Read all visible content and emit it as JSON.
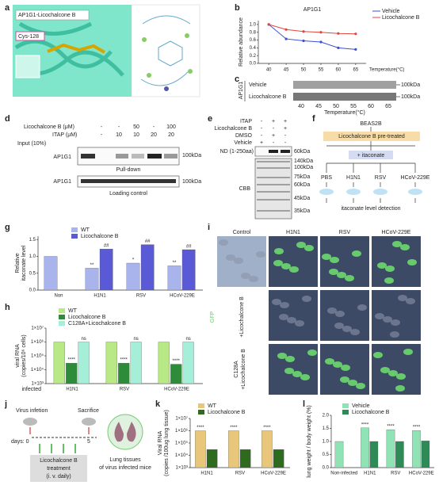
{
  "panel_labels": [
    "a",
    "b",
    "c",
    "d",
    "e",
    "f",
    "g",
    "h",
    "i",
    "j",
    "k",
    "l"
  ],
  "a": {
    "title": "AP1G1-Licochalcone B",
    "residue": "Cys-128"
  },
  "c": {
    "protein": "AP1G1",
    "rows": [
      "Vehicle",
      "Licochalcone B"
    ],
    "marker": "100kDa",
    "temperatures": [
      40,
      45,
      50,
      55,
      60,
      65
    ],
    "xlabel": "Temperature(°C)"
  },
  "d": {
    "rows": [
      {
        "label": "Licochalcone B (μM)",
        "cells": [
          "-",
          "-",
          "50",
          "-",
          "100"
        ]
      },
      {
        "label": "ITAP (μM)",
        "cells": [
          "-",
          "10",
          "10",
          "20",
          "20"
        ]
      }
    ],
    "input": "Input (10%)",
    "protein": "AP1G1",
    "marker": "100kDa",
    "captions": [
      "Pull-down",
      "Loading control"
    ]
  },
  "e": {
    "rows": [
      {
        "label": "ITAP",
        "cells": [
          "-",
          "+",
          "+"
        ]
      },
      {
        "label": "Licochalcone B",
        "cells": [
          "-",
          "-",
          "+"
        ]
      },
      {
        "label": "DMSO",
        "cells": [
          "-",
          "+",
          "-"
        ]
      },
      {
        "label": "Vehicle",
        "cells": [
          "+",
          "-",
          "-"
        ]
      }
    ],
    "probe": "ND (1-250aa)",
    "probe_marker": "60kDa",
    "stain": "CBB",
    "ladder": [
      "140kDa",
      "100kDa",
      "75kDa",
      "60kDa",
      "45kDa",
      "35kDa"
    ]
  },
  "f": {
    "cell": "BEAS2B",
    "pretreat": "Licochalcone B pre-treated",
    "add": "+ itaconate",
    "groups": [
      "PBS",
      "H1N1",
      "RSV",
      "HCoV-229E"
    ],
    "readout": "itaconate level detection"
  },
  "i": {
    "columns": [
      "Control",
      "H1N1",
      "RSV",
      "HCoV-229E"
    ],
    "rows": [
      "GFP",
      "+Licochalcone B",
      "C128A",
      "+Licochalcone B"
    ]
  },
  "j": {
    "infection": "Virus infetion",
    "sacrifice": "Sacrifice",
    "day_start": "days: 0",
    "day_end": "5",
    "treatment": [
      "Licochalcone B",
      "treatment",
      "(i. v. daily)"
    ],
    "tissue": [
      "Lung tissues",
      "of virus infected mice"
    ]
  },
  "chart_data": [
    {
      "type": "line",
      "title": "AP1G1",
      "ylabel": [
        "Relative abundance"
      ],
      "xlabel": "Temperature(°C)",
      "x": [
        40,
        45,
        50,
        55,
        60,
        65
      ],
      "xlim": [
        37,
        68
      ],
      "ylim": [
        0,
        1.1
      ],
      "xticks": [
        40,
        45,
        50,
        55,
        60,
        65
      ],
      "yticks": [
        {
          "value": 0,
          "label": "0.0"
        },
        0.2,
        0.4,
        0.6,
        0.8,
        {
          "value": 1,
          "label": "1.0"
        }
      ],
      "legend": "upper right",
      "series": [
        {
          "name": "Vehicle",
          "color": "#3b4fd8",
          "values": [
            1.0,
            0.63,
            0.58,
            0.55,
            0.4,
            0.36
          ]
        },
        {
          "name": "Licochalcone B",
          "color": "#e0463a",
          "values": [
            1.0,
            0.87,
            0.82,
            0.8,
            0.77,
            0.76
          ]
        }
      ]
    },
    {
      "type": "bar",
      "ylabel": [
        "Relative",
        "itaconate level"
      ],
      "categories": [
        "Non",
        "H1N1",
        "RSV",
        "HCoV-229E"
      ],
      "ylim": [
        0,
        1.6
      ],
      "yticks": [
        {
          "value": 0,
          "label": "0.0"
        },
        0.5,
        {
          "value": 1,
          "label": "1.0"
        },
        1.5
      ],
      "legend": "upper left",
      "series": [
        {
          "name": "WT",
          "color": "#a9b3ec",
          "values": [
            1.0,
            0.65,
            0.8,
            0.72
          ],
          "annotations": [
            null,
            "**",
            "*",
            "**"
          ]
        },
        {
          "name": "Licochalcone B",
          "color": "#5a5ad6",
          "values": [
            null,
            1.22,
            1.35,
            1.2
          ],
          "annotations": [
            null,
            "##",
            "##",
            "##"
          ]
        }
      ]
    },
    {
      "type": "bar",
      "log": true,
      "ylabel": [
        "viral RNA",
        "(copies/10⁶ cells)"
      ],
      "xlabel": "infected",
      "categories": [
        "H1N1",
        "RSV",
        "HCoV-229E"
      ],
      "ylim": [
        1000,
        10000000
      ],
      "yticks": [
        {
          "value": 1000,
          "label": "1×10³"
        },
        {
          "value": 10000,
          "label": "1×10⁴"
        },
        {
          "value": 100000,
          "label": "1×10⁵"
        },
        {
          "value": 1000000,
          "label": "1×10⁶"
        },
        {
          "value": 10000000,
          "label": "1×10⁷"
        }
      ],
      "legend": "upper left",
      "series": [
        {
          "name": "WT",
          "color": "#b8e986",
          "values": [
            1000000,
            1000000,
            1000000
          ],
          "annotations": [
            null,
            null,
            null
          ]
        },
        {
          "name": "Licochalcone B",
          "color": "#2e8b3a",
          "values": [
            30000,
            30000,
            25000
          ],
          "annotations": [
            "****",
            "****",
            "****"
          ]
        },
        {
          "name": "C128A+Licochalcone B",
          "color": "#a5efd9",
          "values": [
            1000000,
            1000000,
            1000000
          ],
          "annotations": [
            "ns",
            "ns",
            "ns"
          ]
        }
      ]
    },
    {
      "type": "bar",
      "log": true,
      "ylabel": [
        "Viral RNA",
        "(copies /100ug lung tissue)"
      ],
      "categories": [
        "H1N1",
        "RSV",
        "HCoV-229E"
      ],
      "ylim": [
        1000,
        10000000
      ],
      "yticks": [
        {
          "value": 1000,
          "label": "1×10³"
        },
        {
          "value": 10000,
          "label": "1×10⁴"
        },
        {
          "value": 100000,
          "label": "1×10⁵"
        },
        {
          "value": 1000000,
          "label": "1×10⁶"
        },
        {
          "value": 10000000,
          "label": "1×10⁷"
        }
      ],
      "legend": "upper left",
      "series": [
        {
          "name": "WT",
          "color": "#e8c77a",
          "values": [
            1000000,
            1000000,
            1000000
          ],
          "annotations": [
            "****",
            "****",
            "****"
          ]
        },
        {
          "name": "Licochalcone B",
          "color": "#2f6b1f",
          "values": [
            30000,
            30000,
            30000
          ],
          "annotations": [
            null,
            null,
            null
          ]
        }
      ]
    },
    {
      "type": "bar",
      "ylabel": [
        "lung weight / body weight (%)"
      ],
      "categories": [
        "Non-infected",
        "H1N1",
        "RSV",
        "HCoV-229E"
      ],
      "ylim": [
        0,
        2
      ],
      "yticks": [
        {
          "value": 0,
          "label": "0.0"
        },
        0.5,
        {
          "value": 1,
          "label": "1.0"
        },
        1.5,
        {
          "value": 2,
          "label": "2.0"
        }
      ],
      "legend": "upper left",
      "series": [
        {
          "name": "Vehicle",
          "color": "#8fe3b4",
          "values": [
            1.0,
            1.52,
            1.45,
            1.42
          ],
          "annotations": [
            null,
            "****",
            "****",
            "****"
          ]
        },
        {
          "name": "Licochalcone B",
          "color": "#2e8b57",
          "values": [
            null,
            1.0,
            1.0,
            1.02
          ],
          "annotations": [
            null,
            null,
            null,
            null
          ]
        }
      ]
    }
  ]
}
